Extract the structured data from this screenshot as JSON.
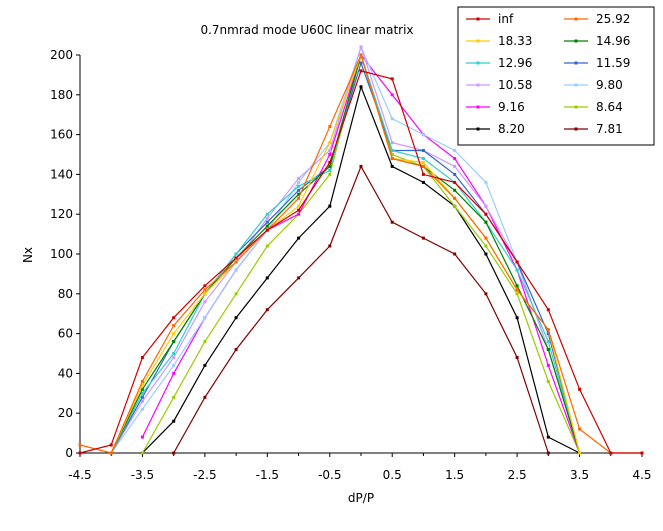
{
  "chart_data": {
    "type": "line",
    "title": "0.7nmrad mode U60C linear matrix",
    "xlabel": "dP/P",
    "ylabel": "Nx",
    "xlim": [
      -4.5,
      4.5
    ],
    "ylim": [
      0,
      200
    ],
    "x_ticks": [
      -4.5,
      -3.5,
      -2.5,
      -1.5,
      -0.5,
      0.5,
      1.5,
      2.5,
      3.5,
      4.5
    ],
    "x_tick_labels": [
      "-4.5",
      "-3.5",
      "-2.5",
      "-1.5",
      "-0.5",
      "0.5",
      "1.5",
      "2.5",
      "3.5",
      "4.5"
    ],
    "y_ticks": [
      0,
      20,
      40,
      60,
      80,
      100,
      120,
      140,
      160,
      180,
      200
    ],
    "y_tick_labels": [
      "0",
      "20",
      "40",
      "60",
      "80",
      "100",
      "120",
      "140",
      "160",
      "180",
      "200"
    ],
    "grid": "none",
    "legend_position": "top-right",
    "x": [
      -4.5,
      -4,
      -3.5,
      -3,
      -2.5,
      -2,
      -1.5,
      -1,
      -0.5,
      0,
      0.5,
      1,
      1.5,
      2,
      2.5,
      3,
      3.5,
      4,
      4.5
    ],
    "series": [
      {
        "name": "inf",
        "color": "#cc0000",
        "values": [
          0,
          4,
          48,
          68,
          84,
          98,
          112,
          122,
          146,
          192,
          188,
          140,
          136,
          120,
          96,
          72,
          32,
          0,
          0
        ]
      },
      {
        "name": "25.92",
        "color": "#ff6600",
        "values": [
          4,
          0,
          36,
          64,
          82,
          96,
          112,
          128,
          164,
          200,
          148,
          144,
          128,
          108,
          82,
          62,
          12,
          0,
          0
        ]
      },
      {
        "name": "18.33",
        "color": "#ffcc00",
        "values": [
          null,
          0,
          34,
          60,
          80,
          96,
          112,
          124,
          156,
          200,
          148,
          146,
          128,
          108,
          82,
          62,
          0,
          null,
          null
        ]
      },
      {
        "name": "14.96",
        "color": "#008000",
        "values": [
          null,
          0,
          32,
          56,
          80,
          98,
          114,
          130,
          144,
          200,
          148,
          144,
          132,
          116,
          84,
          52,
          0,
          null,
          null
        ]
      },
      {
        "name": "12.96",
        "color": "#33cccc",
        "values": [
          null,
          0,
          30,
          50,
          80,
          100,
          120,
          134,
          142,
          200,
          152,
          148,
          136,
          116,
          92,
          56,
          0,
          null,
          null
        ]
      },
      {
        "name": "11.59",
        "color": "#3366cc",
        "values": [
          null,
          0,
          28,
          56,
          80,
          100,
          116,
          132,
          144,
          196,
          152,
          152,
          140,
          120,
          96,
          60,
          0,
          null,
          null
        ]
      },
      {
        "name": "10.58",
        "color": "#cc99ff",
        "values": [
          null,
          0,
          26,
          48,
          76,
          96,
          118,
          138,
          152,
          204,
          156,
          152,
          144,
          124,
          96,
          52,
          0,
          null,
          null
        ]
      },
      {
        "name": "9.80",
        "color": "#99ccff",
        "values": [
          null,
          0,
          22,
          44,
          68,
          92,
          112,
          136,
          156,
          204,
          168,
          160,
          152,
          136,
          96,
          52,
          0,
          null,
          null
        ]
      },
      {
        "name": "9.16",
        "color": "#ff00ff",
        "values": [
          null,
          null,
          8,
          40,
          68,
          92,
          112,
          120,
          150,
          200,
          180,
          160,
          148,
          124,
          92,
          44,
          0,
          null,
          null
        ]
      },
      {
        "name": "8.64",
        "color": "#99cc00",
        "values": [
          null,
          null,
          0,
          28,
          56,
          80,
          104,
          120,
          140,
          200,
          150,
          144,
          124,
          104,
          80,
          36,
          0,
          null,
          null
        ]
      },
      {
        "name": "8.20",
        "color": "#000000",
        "values": [
          null,
          null,
          0,
          16,
          44,
          68,
          88,
          108,
          124,
          184,
          144,
          136,
          124,
          100,
          68,
          8,
          0,
          null,
          null
        ]
      },
      {
        "name": "7.81",
        "color": "#800000",
        "values": [
          null,
          null,
          null,
          0,
          28,
          52,
          72,
          88,
          104,
          144,
          116,
          108,
          100,
          80,
          48,
          0,
          null,
          null,
          null
        ]
      }
    ]
  }
}
